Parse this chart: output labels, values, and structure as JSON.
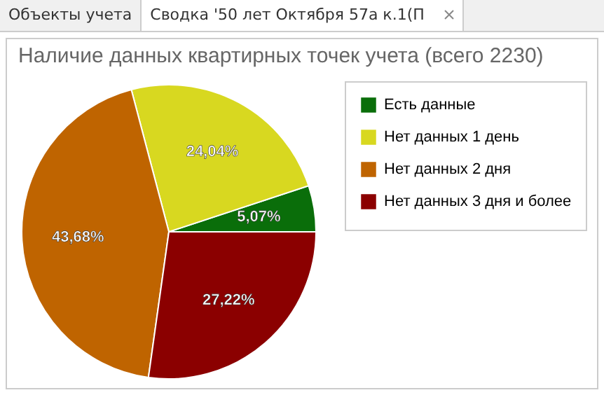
{
  "chart_data": {
    "type": "pie",
    "title": "Наличие данных квартирных точек учета (всего 2230)",
    "categories": [
      "Есть данные",
      "Нет данных 1 день",
      "Нет данных 2 дня",
      "Нет данных 3 дня и более"
    ],
    "values": [
      5.07,
      24.04,
      43.68,
      27.22
    ],
    "colors": [
      "#0a6e0a",
      "#d8d820",
      "#bf6400",
      "#8b0000"
    ],
    "value_labels": [
      "5,07%",
      "24,04%",
      "43,68%",
      "27,22%"
    ],
    "legend": "top right",
    "annotations": [
      "Объекты учета",
      "Сводка '50 лет Октября 57а к.1(П"
    ]
  }
}
